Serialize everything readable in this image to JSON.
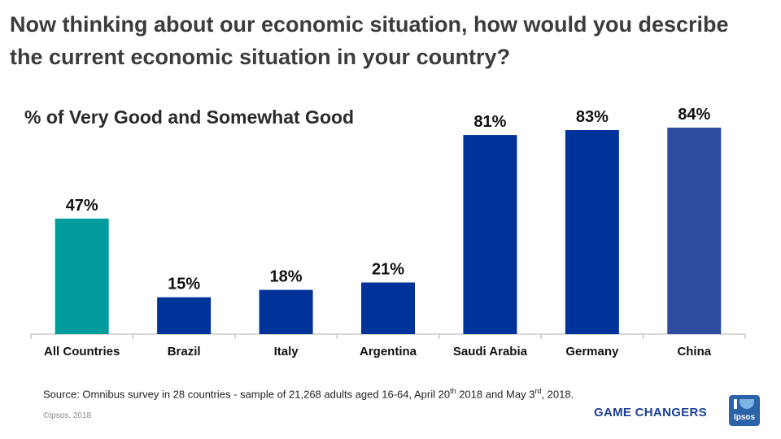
{
  "title": "Now thinking about our economic situation, how would you describe the current economic situation in your country?",
  "chart_data": {
    "type": "bar",
    "title": "% of Very Good and Somewhat Good",
    "categories": [
      "All Countries",
      "Brazil",
      "Italy",
      "Argentina",
      "Saudi Arabia",
      "Germany",
      "China"
    ],
    "values": [
      47,
      15,
      18,
      21,
      81,
      83,
      84
    ],
    "data_labels": [
      "47%",
      "15%",
      "18%",
      "21%",
      "81%",
      "83%",
      "84%"
    ],
    "colors": [
      "#009b9b",
      "#00339a",
      "#00339a",
      "#00339a",
      "#00339a",
      "#00339a",
      "#2d4ba0"
    ],
    "xlabel": "",
    "ylabel": "",
    "ylim": [
      0,
      84
    ],
    "grid": false
  },
  "footer": {
    "source_pre": "Source: Omnibus survey in 28 countries - sample of 21,268 adults aged 16-64,  April 20",
    "source_sup1": "th",
    "source_mid": " 2018 and May 3",
    "source_sup2": "rd",
    "source_post": ", 2018.",
    "copyright": "©Ipsos. 2018",
    "tagline": "GAME CHANGERS",
    "logo_text": "Ipsos"
  }
}
